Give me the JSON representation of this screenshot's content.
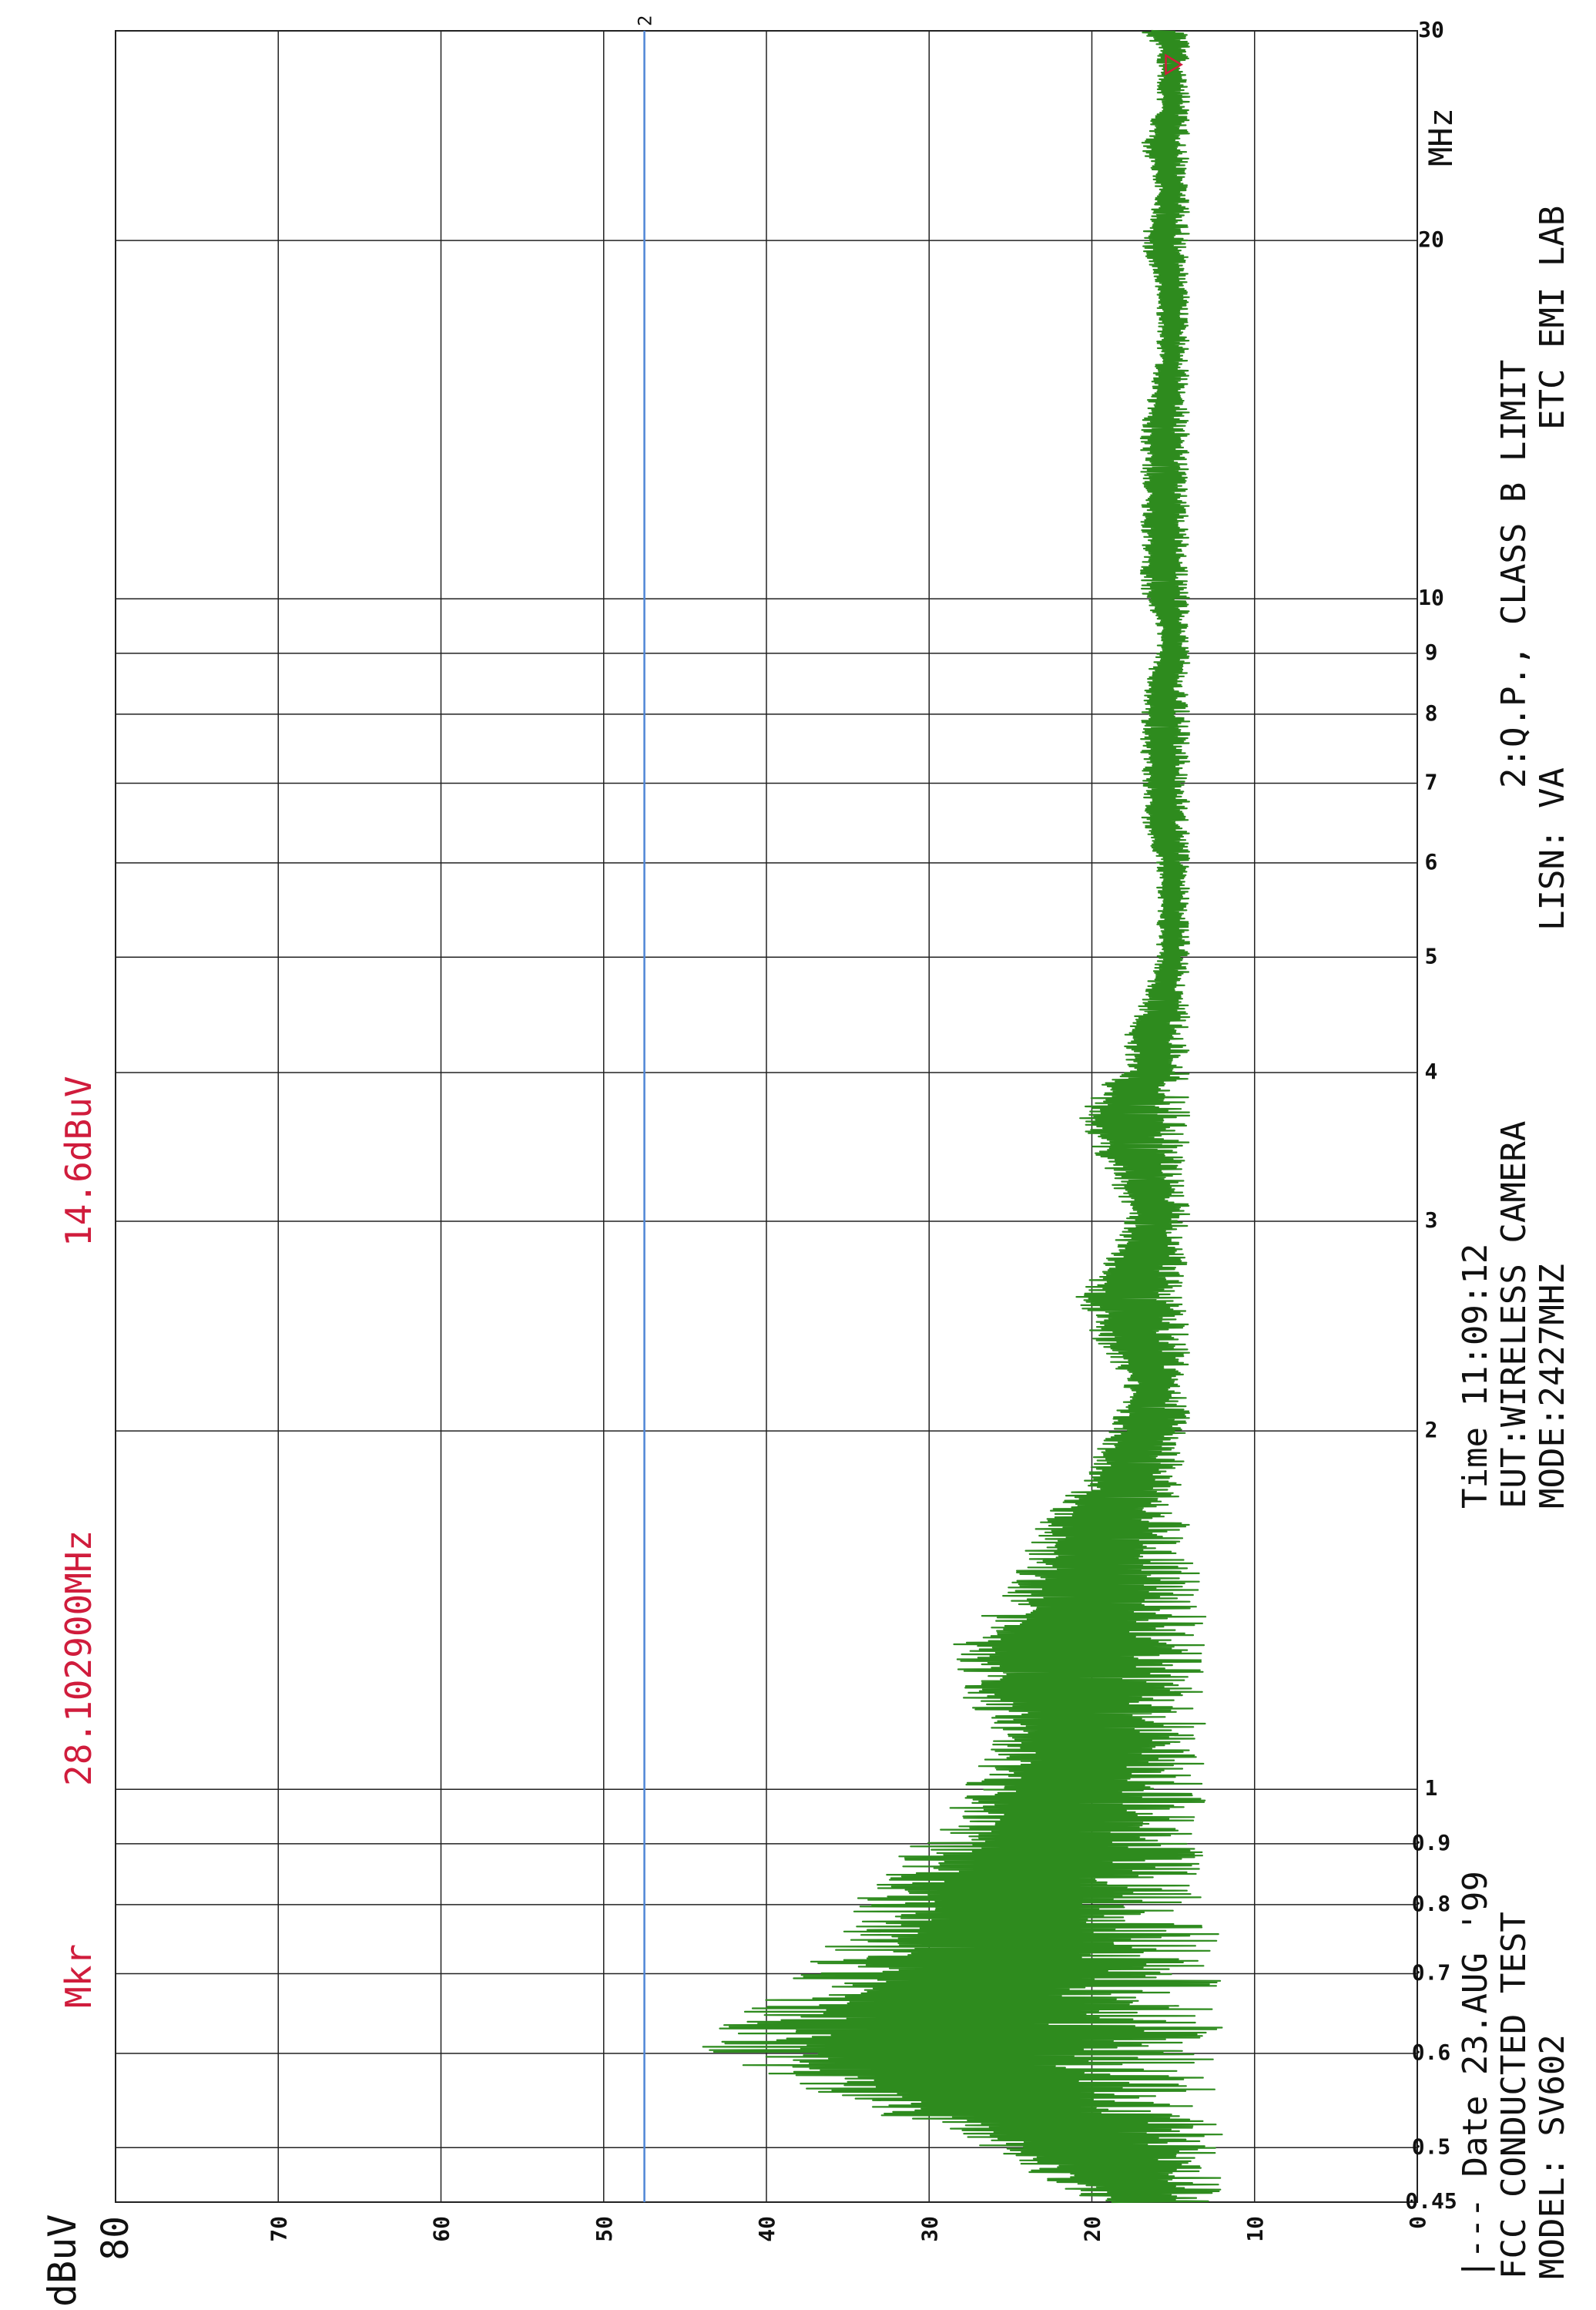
{
  "chart_data": {
    "type": "line",
    "xscale": "log",
    "xlim": [
      0.45,
      30
    ],
    "ylim": [
      0,
      80
    ],
    "xunit": "MHz",
    "yunit": "dBuV",
    "x_ticks": [
      "0.45",
      "0.5",
      "0.6",
      "0.7",
      "0.8",
      "0.9",
      "1",
      "2",
      "3",
      "4",
      "5",
      "6",
      "7",
      "8",
      "9",
      "10",
      "20",
      "30"
    ],
    "y_ticks": [
      "0",
      "10",
      "20",
      "30",
      "40",
      "50",
      "60",
      "70",
      "80"
    ],
    "grid": true,
    "marker": {
      "label": "Mkr",
      "frequency": "28.102900MHz",
      "level": "14.6dBuV",
      "x": 28.1029,
      "y": 14.6
    },
    "series": [
      {
        "name": "",
        "color": "#2e8b1e",
        "x": [
          0.45,
          0.47,
          0.5,
          0.52,
          0.55,
          0.58,
          0.6,
          0.62,
          0.65,
          0.68,
          0.7,
          0.75,
          0.8,
          0.85,
          0.9,
          0.95,
          1.0,
          1.05,
          1.1,
          1.2,
          1.3,
          1.4,
          1.5,
          1.6,
          1.7,
          1.8,
          1.9,
          2.0,
          2.2,
          2.4,
          2.6,
          2.8,
          3.0,
          3.3,
          3.6,
          3.9,
          4.0,
          4.3,
          4.6,
          5.0,
          5.3,
          5.6,
          6.0,
          6.5,
          7.0,
          7.5,
          8.0,
          8.5,
          9.0,
          9.5,
          10.0,
          12.0,
          14.0,
          16.0,
          18.0,
          20.0,
          22.0,
          24.0,
          26.0,
          28.0,
          29.0,
          30.0
        ],
        "hi": [
          20,
          23,
          27,
          30,
          37,
          41,
          44,
          44,
          42,
          40,
          38,
          36,
          35,
          33,
          31,
          29,
          28,
          27,
          26,
          28,
          29,
          27,
          25,
          24,
          23,
          21,
          20,
          19,
          18,
          20,
          21,
          19,
          18,
          19,
          21,
          20,
          18,
          18,
          17,
          16,
          16,
          16,
          16,
          17,
          17,
          17,
          17,
          17,
          16,
          16,
          17,
          17,
          17,
          16,
          16,
          17,
          16,
          17,
          16,
          16,
          16,
          17
        ],
        "lo": [
          12,
          12,
          12,
          12,
          12,
          12,
          12,
          12,
          12,
          12,
          12,
          12,
          13,
          13,
          13,
          13,
          13,
          13,
          13,
          13,
          13,
          13,
          13,
          14,
          14,
          14,
          14,
          14,
          14,
          14,
          14,
          14,
          14,
          14,
          14,
          14,
          14,
          14,
          14,
          14,
          14,
          14,
          14,
          14,
          14,
          14,
          14,
          14,
          14,
          14,
          14,
          14,
          14,
          14,
          14,
          14,
          14,
          14,
          14,
          14,
          14,
          14
        ]
      }
    ],
    "limit_line": {
      "label": "2",
      "level": 47.5,
      "color": "#4f86d6"
    }
  },
  "y_axis_title": "dBuV",
  "info": {
    "date_line": "|--- Date 23.AUG '99",
    "test_line": "FCC CONDUCTED TEST",
    "model_line": "MODEL: SV602",
    "time_line": "Time 11:09:12",
    "eut_line": "EUT:WIRELESS CAMERA",
    "mode_line": "MODE:2427MHZ",
    "limit_line": "2:Q.P., CLASS B  LIMIT",
    "lisn_line": "LISN:  VA",
    "lab_line": "ETC EMI LAB"
  },
  "colors": {
    "grid": "#222222",
    "text": "#111111",
    "marker_text": "#d01c3c",
    "trace": "#2e8b1e",
    "limit": "#4f86d6"
  }
}
